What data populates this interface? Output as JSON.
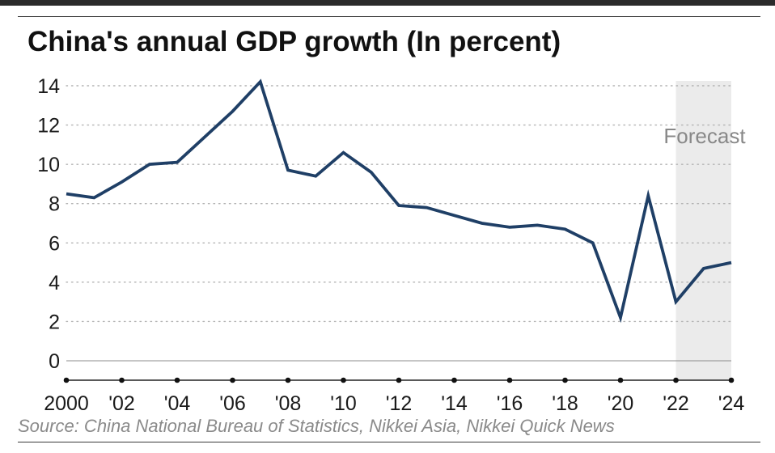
{
  "chart_data": {
    "type": "line",
    "title": "China's annual GDP growth (In percent)",
    "source": "Source: China National Bureau of Statistics, Nikkei Asia, Nikkei Quick News",
    "shaded_region": {
      "label": "Forecast",
      "x_start": 2022,
      "x_end": 2024
    },
    "x": [
      2000,
      2001,
      2002,
      2003,
      2004,
      2005,
      2006,
      2007,
      2008,
      2009,
      2010,
      2011,
      2012,
      2013,
      2014,
      2015,
      2016,
      2017,
      2018,
      2019,
      2020,
      2021,
      2022,
      2023,
      2024
    ],
    "series": [
      {
        "values": [
          8.5,
          8.3,
          9.1,
          10.0,
          10.1,
          11.4,
          12.7,
          14.2,
          9.7,
          9.4,
          10.6,
          9.6,
          7.9,
          7.8,
          7.4,
          7.0,
          6.8,
          6.9,
          6.7,
          6.0,
          2.2,
          8.4,
          3.0,
          4.7,
          5.0
        ],
        "color": "#1f3f66"
      }
    ],
    "xlim": [
      2000,
      2024
    ],
    "ylim": [
      0,
      14
    ],
    "yticks": [
      0,
      2,
      4,
      6,
      8,
      10,
      12,
      14
    ],
    "xticks": [
      2000,
      2002,
      2004,
      2006,
      2008,
      2010,
      2012,
      2014,
      2016,
      2018,
      2020,
      2022,
      2024
    ],
    "xtick_labels": [
      "2000",
      "'02",
      "'04",
      "'06",
      "'08",
      "'10",
      "'12",
      "'14",
      "'16",
      "'18",
      "'20",
      "'22",
      "'24"
    ],
    "grid": "horizontal dotted",
    "colors": {
      "line": "#1f3f66",
      "forecast_shade": "#ebebeb",
      "grid": "#b3b3b3",
      "axis": "#222222"
    }
  }
}
